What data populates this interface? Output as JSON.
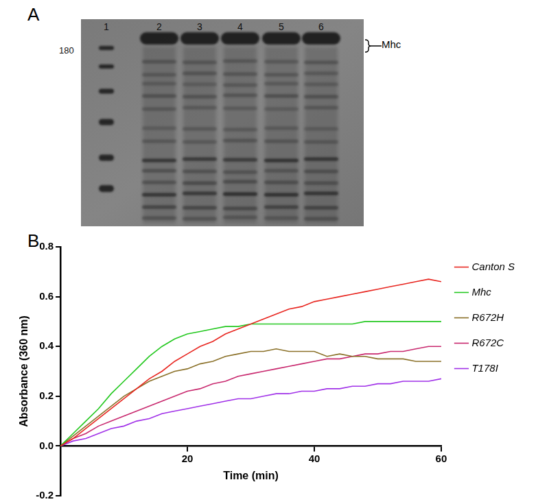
{
  "panel_a": {
    "label": "A",
    "lane_labels": [
      "1",
      "2",
      "3",
      "4",
      "5",
      "6"
    ],
    "marker_label": "180",
    "band_label": "Mhc"
  },
  "panel_b": {
    "label": "B"
  },
  "chart_data": {
    "type": "line",
    "x_label": "Time (min)",
    "y_label": "Absorbance (360 nm)",
    "x": [
      0,
      2,
      4,
      6,
      8,
      10,
      12,
      14,
      16,
      18,
      20,
      22,
      24,
      26,
      28,
      30,
      32,
      34,
      36,
      38,
      40,
      42,
      44,
      46,
      48,
      50,
      52,
      54,
      56,
      58,
      60
    ],
    "series": [
      {
        "name": "Canton S",
        "color": "#e8251f",
        "values": [
          0,
          0.03,
          0.07,
          0.11,
          0.15,
          0.19,
          0.23,
          0.27,
          0.3,
          0.34,
          0.37,
          0.4,
          0.42,
          0.45,
          0.47,
          0.49,
          0.51,
          0.53,
          0.55,
          0.56,
          0.58,
          0.59,
          0.6,
          0.61,
          0.62,
          0.63,
          0.64,
          0.65,
          0.66,
          0.67,
          0.66
        ]
      },
      {
        "name": "Mhc",
        "color": "#22c81e",
        "values": [
          0,
          0.05,
          0.1,
          0.15,
          0.21,
          0.26,
          0.31,
          0.36,
          0.4,
          0.43,
          0.45,
          0.46,
          0.47,
          0.48,
          0.48,
          0.49,
          0.49,
          0.49,
          0.49,
          0.49,
          0.49,
          0.49,
          0.49,
          0.49,
          0.5,
          0.5,
          0.5,
          0.5,
          0.5,
          0.5,
          0.5
        ]
      },
      {
        "name": "R672H",
        "color": "#8a7028",
        "values": [
          0,
          0.04,
          0.08,
          0.12,
          0.16,
          0.2,
          0.23,
          0.26,
          0.28,
          0.3,
          0.31,
          0.33,
          0.34,
          0.36,
          0.37,
          0.38,
          0.38,
          0.39,
          0.38,
          0.38,
          0.38,
          0.36,
          0.37,
          0.36,
          0.36,
          0.35,
          0.35,
          0.35,
          0.34,
          0.34,
          0.34
        ]
      },
      {
        "name": "R672C",
        "color": "#c8286e",
        "values": [
          0,
          0.03,
          0.05,
          0.08,
          0.1,
          0.12,
          0.14,
          0.16,
          0.18,
          0.2,
          0.22,
          0.23,
          0.25,
          0.26,
          0.28,
          0.29,
          0.3,
          0.31,
          0.32,
          0.33,
          0.34,
          0.35,
          0.35,
          0.36,
          0.37,
          0.37,
          0.38,
          0.38,
          0.39,
          0.4,
          0.4
        ]
      },
      {
        "name": "T178I",
        "color": "#a030e8",
        "values": [
          0,
          0.02,
          0.03,
          0.05,
          0.07,
          0.08,
          0.1,
          0.11,
          0.13,
          0.14,
          0.15,
          0.16,
          0.17,
          0.18,
          0.19,
          0.19,
          0.2,
          0.21,
          0.21,
          0.22,
          0.22,
          0.23,
          0.23,
          0.24,
          0.24,
          0.25,
          0.25,
          0.26,
          0.26,
          0.26,
          0.27
        ]
      }
    ],
    "xlim": [
      0,
      60
    ],
    "xticks": [
      20,
      40,
      60
    ],
    "ylim": [
      -0.2,
      0.8
    ],
    "yticks": [
      -0.2,
      {
        "value": 0,
        "label": "0.0"
      },
      0.2,
      0.4,
      0.6,
      0.8
    ],
    "grid": false,
    "legend": "right"
  }
}
